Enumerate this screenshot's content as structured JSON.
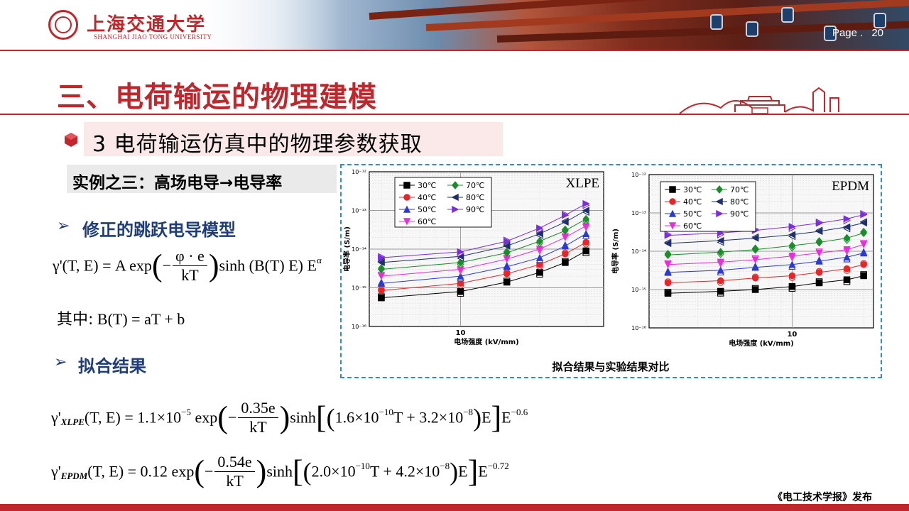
{
  "header": {
    "school_cn": "上海交通大学",
    "school_en": "SHANGHAI JIAO TONG UNIVERSITY",
    "page_label": "Page .",
    "page_number": "20"
  },
  "title": "三、电荷输运的物理建模",
  "subheading": "3  电荷输运仿真中的物理参数获取",
  "example": "实例之三：高场电导→电导率",
  "bullets": {
    "model": "修正的跳跃电导模型",
    "fit": "拟合结果"
  },
  "formulas": {
    "model": {
      "lhs": "γ'(T, E) = A exp",
      "frac_num": "φ · e",
      "frac_den": "kT",
      "rhs": "sinh (B(T) E) E",
      "exp": "α"
    },
    "where": {
      "prefix": "其中:",
      "expr": "B(T) = aT + b"
    },
    "xlpe": {
      "gamma": "γ'",
      "sub": "XLPE",
      "lhs": "(T, E) = 1.1×10",
      "lhs_exp": "−5",
      "exp_word": "exp",
      "frac_num": "0.35e",
      "frac_den": "kT",
      "sinh_a": "sinh",
      "coef1": "1.6×10",
      "coef1_exp": "−10",
      "coef2": "T + 3.2×10",
      "coef2_exp": "−8",
      "tail": "E",
      "tail_exp": "−0.6"
    },
    "epdm": {
      "gamma": "γ'",
      "sub": "EPDM",
      "lhs": "(T, E) = 0.12 exp",
      "frac_num": "0.54e",
      "frac_den": "kT",
      "sinh_a": "sinh",
      "coef1": "2.0×10",
      "coef1_exp": "−10",
      "coef2": "T + 4.2×10",
      "coef2_exp": "−8",
      "tail": "E",
      "tail_exp": "−0.72"
    }
  },
  "chart_caption": "拟合结果与实验结果对比",
  "footer": "《电工技术学报》发布",
  "colors": {
    "accent": "#c0272d",
    "bullet": "#1f3d7a",
    "frame": "#2d8fc4"
  },
  "chart_data": [
    {
      "type": "scatter",
      "title": "XLPE",
      "xlabel": "电场强度 (kV/mm)",
      "ylabel": "电导率 (S/m)",
      "x_scale": "log",
      "y_scale": "log",
      "xlim": [
        4.5,
        35
      ],
      "ylim": [
        1e-16,
        1e-12
      ],
      "x_ticks": [
        "10"
      ],
      "y_ticks": [
        "10⁻¹⁶",
        "10⁻¹⁵",
        "10⁻¹⁴",
        "10⁻¹³",
        "10⁻¹²"
      ],
      "grid": true,
      "legend_position": "top-left",
      "x": [
        5,
        10,
        15,
        20,
        25,
        30
      ],
      "series": [
        {
          "name": "30℃",
          "color": "#000000",
          "marker": "square",
          "values": [
            5.5e-16,
            8e-16,
            1.4e-15,
            2.5e-15,
            4.5e-15,
            9e-15
          ]
        },
        {
          "name": "40℃",
          "color": "#e8262a",
          "marker": "circle",
          "values": [
            8.5e-16,
            1.3e-15,
            2.3e-15,
            4e-15,
            7.5e-15,
            1.5e-14
          ]
        },
        {
          "name": "50℃",
          "color": "#2a3ad6",
          "marker": "triangle-up",
          "values": [
            1.3e-15,
            2e-15,
            3.5e-15,
            6e-15,
            1.2e-14,
            2.5e-14
          ]
        },
        {
          "name": "60℃",
          "color": "#e82ed6",
          "marker": "triangle-down",
          "values": [
            2e-15,
            3e-15,
            5.5e-15,
            1e-14,
            2e-14,
            4e-14
          ]
        },
        {
          "name": "70℃",
          "color": "#1b8c2a",
          "marker": "diamond",
          "values": [
            3e-15,
            4.5e-15,
            8e-15,
            1.6e-14,
            3e-14,
            6e-14
          ]
        },
        {
          "name": "80℃",
          "color": "#1e2f6e",
          "marker": "triangle-left",
          "values": [
            4.5e-15,
            6.5e-15,
            1.2e-14,
            2.5e-14,
            5e-14,
            1e-13
          ]
        },
        {
          "name": "90℃",
          "color": "#7b2de0",
          "marker": "triangle-right",
          "values": [
            6e-15,
            8.5e-15,
            1.6e-14,
            3.5e-14,
            7.5e-14,
            1.5e-13
          ]
        }
      ]
    },
    {
      "type": "scatter",
      "title": "EPDM",
      "xlabel": "电场强度 (kV/mm)",
      "ylabel": "电导率 (S/m)",
      "x_scale": "log",
      "y_scale": "log",
      "xlim": [
        2.5,
        22
      ],
      "ylim": [
        1e-16,
        1e-12
      ],
      "x_ticks": [
        "10"
      ],
      "y_ticks": [
        "10⁻¹⁶",
        "10⁻¹⁵",
        "10⁻¹⁴",
        "10⁻¹³",
        "10⁻¹²"
      ],
      "grid": true,
      "legend_position": "top-left",
      "x": [
        3,
        5,
        7,
        10,
        13,
        17,
        20
      ],
      "series": [
        {
          "name": "30℃",
          "color": "#000000",
          "marker": "square",
          "values": [
            8e-16,
            9e-16,
            1e-15,
            1.2e-15,
            1.5e-15,
            1.8e-15,
            2.3e-15
          ]
        },
        {
          "name": "40℃",
          "color": "#e8262a",
          "marker": "circle",
          "values": [
            1.5e-15,
            1.7e-15,
            2e-15,
            2.3e-15,
            2.8e-15,
            3.5e-15,
            4.5e-15
          ]
        },
        {
          "name": "50℃",
          "color": "#2a3ad6",
          "marker": "triangle-up",
          "values": [
            2.8e-15,
            3.2e-15,
            3.8e-15,
            4.5e-15,
            5.5e-15,
            7e-15,
            9e-15
          ]
        },
        {
          "name": "60℃",
          "color": "#e82ed6",
          "marker": "triangle-down",
          "values": [
            4.5e-15,
            5.2e-15,
            6e-15,
            7.5e-15,
            9e-15,
            1.1e-14,
            1.5e-14
          ]
        },
        {
          "name": "70℃",
          "color": "#1b8c2a",
          "marker": "diamond",
          "values": [
            8e-15,
            9.5e-15,
            1.1e-14,
            1.4e-14,
            1.7e-14,
            2.2e-14,
            3e-14
          ]
        },
        {
          "name": "80℃",
          "color": "#1e2f6e",
          "marker": "triangle-left",
          "values": [
            1.6e-14,
            1.9e-14,
            2.2e-14,
            2.7e-14,
            3.3e-14,
            4.3e-14,
            5.5e-14
          ]
        },
        {
          "name": "90℃",
          "color": "#7b2de0",
          "marker": "triangle-right",
          "values": [
            2.6e-14,
            3e-14,
            3.5e-14,
            4.4e-14,
            5.4e-14,
            7e-14,
            9e-14
          ]
        }
      ]
    }
  ]
}
